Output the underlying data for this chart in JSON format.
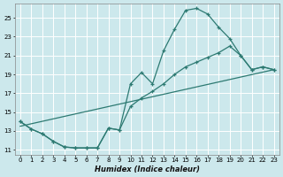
{
  "xlabel": "Humidex (Indice chaleur)",
  "bg_color": "#cce8ec",
  "grid_color": "#ffffff",
  "line_color": "#2d7a72",
  "xlim": [
    -0.5,
    23.5
  ],
  "ylim": [
    10.5,
    26.5
  ],
  "xticks": [
    0,
    1,
    2,
    3,
    4,
    5,
    6,
    7,
    8,
    9,
    10,
    11,
    12,
    13,
    14,
    15,
    16,
    17,
    18,
    19,
    20,
    21,
    22,
    23
  ],
  "yticks": [
    11,
    13,
    15,
    17,
    19,
    21,
    23,
    25
  ],
  "curve1_x": [
    0,
    1,
    2,
    3,
    4,
    5,
    6,
    7,
    8,
    9,
    10,
    11,
    12,
    13,
    14,
    15,
    16,
    17,
    18,
    19,
    20,
    21,
    22,
    23
  ],
  "curve1_y": [
    14.0,
    13.2,
    12.7,
    11.9,
    11.3,
    11.2,
    11.2,
    11.2,
    13.3,
    13.1,
    15.6,
    16.5,
    17.2,
    18.0,
    19.0,
    19.8,
    20.3,
    20.8,
    21.3,
    22.0,
    21.0,
    19.5,
    19.8,
    19.5
  ],
  "curve2_x": [
    0,
    1,
    2,
    3,
    4,
    5,
    6,
    7,
    8,
    9,
    10,
    11,
    12,
    13,
    14,
    15,
    16,
    17,
    18,
    19,
    20,
    21,
    22,
    23
  ],
  "curve2_y": [
    14.0,
    13.2,
    12.7,
    11.9,
    11.3,
    11.2,
    11.2,
    11.2,
    13.3,
    13.1,
    18.0,
    19.2,
    18.0,
    21.5,
    23.8,
    25.8,
    26.0,
    25.4,
    24.0,
    22.8,
    21.0,
    19.5,
    19.8,
    19.5
  ],
  "line3_x": [
    0,
    23
  ],
  "line3_y": [
    13.5,
    19.5
  ]
}
